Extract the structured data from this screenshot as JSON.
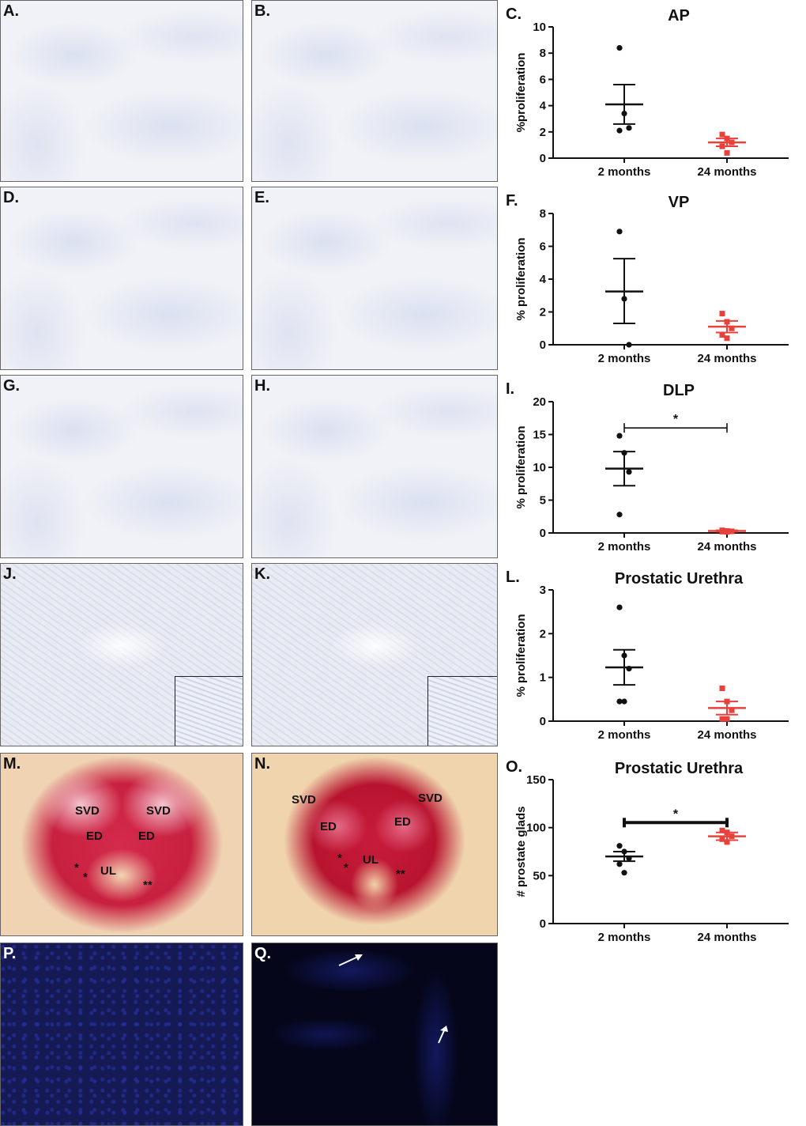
{
  "panels": {
    "A": {
      "label": "A."
    },
    "B": {
      "label": "B."
    },
    "D": {
      "label": "D."
    },
    "E": {
      "label": "E."
    },
    "G": {
      "label": "G."
    },
    "H": {
      "label": "H."
    },
    "J": {
      "label": "J."
    },
    "K": {
      "label": "K."
    },
    "M": {
      "label": "M.",
      "tissue_labels": {
        "svd_left": "SVD",
        "svd_right": "SVD",
        "ed_left": "ED",
        "ed_right": "ED",
        "ul": "UL",
        "star1": "*",
        "star2": "*",
        "star3": "**"
      }
    },
    "N": {
      "label": "N.",
      "tissue_labels": {
        "svd_left": "SVD",
        "svd_right": "SVD",
        "ed_left": "ED",
        "ed_right": "ED",
        "ul": "UL",
        "star1": "*",
        "star2": "*",
        "star3": "**"
      }
    },
    "P": {
      "label": "P."
    },
    "Q": {
      "label": "Q."
    }
  },
  "colors": {
    "young": "#111111",
    "old": "#e8403a"
  },
  "chart_data": [
    {
      "panel_label": "C.",
      "type": "scatter",
      "title": "AP",
      "ylabel": "%proliferation",
      "categories": [
        "2 months",
        "24 months"
      ],
      "ylim": [
        0,
        10
      ],
      "yticks": [
        0,
        2,
        4,
        6,
        8,
        10
      ],
      "series": [
        {
          "category": "2 months",
          "points": [
            8.4,
            3.4,
            2.3,
            2.1
          ],
          "mean": 4.1,
          "sem_low": 2.6,
          "sem_high": 5.6
        },
        {
          "category": "24 months",
          "points": [
            1.8,
            1.5,
            1.2,
            0.9,
            0.4
          ],
          "mean": 1.2,
          "sem_low": 0.9,
          "sem_high": 1.5
        }
      ],
      "significance": ""
    },
    {
      "panel_label": "F.",
      "type": "scatter",
      "title": "VP",
      "ylabel": "% proliferation",
      "categories": [
        "2 months",
        "24 months"
      ],
      "ylim": [
        0,
        8
      ],
      "yticks": [
        0,
        2,
        4,
        6,
        8
      ],
      "series": [
        {
          "category": "2 months",
          "points": [
            6.9,
            2.8,
            0.0
          ],
          "mean": 3.25,
          "sem_low": 1.3,
          "sem_high": 5.25
        },
        {
          "category": "24 months",
          "points": [
            1.9,
            1.4,
            1.0,
            0.6,
            0.4
          ],
          "mean": 1.1,
          "sem_low": 0.75,
          "sem_high": 1.45
        }
      ],
      "significance": ""
    },
    {
      "panel_label": "I.",
      "type": "scatter",
      "title": "DLP",
      "ylabel": "% proliferation",
      "categories": [
        "2 months",
        "24 months"
      ],
      "ylim": [
        0,
        20
      ],
      "yticks": [
        0,
        5,
        10,
        15,
        20
      ],
      "series": [
        {
          "category": "2 months",
          "points": [
            14.8,
            12.2,
            9.3,
            2.8
          ],
          "mean": 9.8,
          "sem_low": 7.2,
          "sem_high": 12.4
        },
        {
          "category": "24 months",
          "points": [
            0.4,
            0.3,
            0.25,
            0.2,
            0.15
          ],
          "mean": 0.3,
          "sem_low": 0.2,
          "sem_high": 0.4
        }
      ],
      "significance": "*"
    },
    {
      "panel_label": "L.",
      "type": "scatter",
      "title": "Prostatic Urethra",
      "ylabel": "% proliferation",
      "categories": [
        "2 months",
        "24 months"
      ],
      "ylim": [
        0,
        3
      ],
      "yticks": [
        0,
        1,
        2,
        3
      ],
      "series": [
        {
          "category": "2 months",
          "points": [
            2.6,
            1.5,
            1.2,
            0.45,
            0.45
          ],
          "mean": 1.23,
          "sem_low": 0.83,
          "sem_high": 1.63
        },
        {
          "category": "24 months",
          "points": [
            0.75,
            0.45,
            0.25,
            0.05,
            0.05
          ],
          "mean": 0.3,
          "sem_low": 0.15,
          "sem_high": 0.45
        }
      ],
      "significance": ""
    },
    {
      "panel_label": "O.",
      "type": "scatter",
      "title": "Prostatic Urethra",
      "ylabel": "# prostate glads",
      "categories": [
        "2 months",
        "24 months"
      ],
      "ylim": [
        0,
        150
      ],
      "yticks": [
        0,
        50,
        100,
        150
      ],
      "series": [
        {
          "category": "2 months",
          "points": [
            81,
            75,
            68,
            62,
            53
          ],
          "mean": 70,
          "sem_low": 65,
          "sem_high": 75
        },
        {
          "category": "24 months",
          "points": [
            97,
            95,
            91,
            88,
            85
          ],
          "mean": 91,
          "sem_low": 87,
          "sem_high": 95
        }
      ],
      "significance": "*"
    }
  ]
}
